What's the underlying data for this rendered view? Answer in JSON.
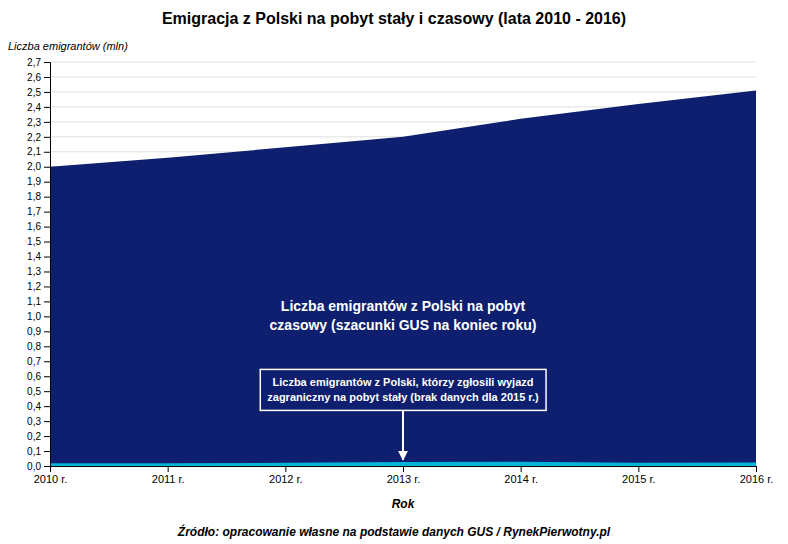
{
  "chart_data": {
    "type": "area",
    "title": "Emigracja z Polski na pobyt stały i czasowy (lata 2010 - 2016)",
    "xlabel": "Rok",
    "ylabel": "Liczba emigrantów (mln)",
    "source": "Źródło: opracowanie własne na podstawie danych GUS / RynekPierwotny.pl",
    "x": [
      2010,
      2011,
      2012,
      2013,
      2014,
      2015,
      2016
    ],
    "series": [
      {
        "color": "#0d1f6e",
        "values": [
          2.0,
          2.06,
          2.13,
          2.2,
          2.32,
          2.42,
          2.51
        ]
      },
      {
        "color": "#00b4d8",
        "values": [
          0.018,
          0.019,
          0.021,
          0.026,
          0.028,
          0.022,
          0.023
        ]
      }
    ],
    "annotations": [
      "Liczba emigrantów z Polski na pobyt\nczasowy (szacunki GUS na koniec roku)",
      "Liczba emigrantów z Polski, którzy zgłosili wyjazd\nzagraniczny na pobyt stały (brak danych dla 2015 r.)"
    ],
    "xlim": [
      2010,
      2016
    ],
    "xticks": [
      {
        "value": 2010,
        "label": "2010 r."
      },
      {
        "value": 2011,
        "label": "2011 r."
      },
      {
        "value": 2012,
        "label": "2012 r."
      },
      {
        "value": 2013,
        "label": "2013 r."
      },
      {
        "value": 2014,
        "label": "2014 r."
      },
      {
        "value": 2015,
        "label": "2015 r."
      },
      {
        "value": 2016,
        "label": "2016 r."
      }
    ],
    "ylim": [
      0.0,
      2.7
    ],
    "yticks": [
      {
        "value": 0.0,
        "label": "0,0"
      },
      {
        "value": 0.1,
        "label": "0,1"
      },
      {
        "value": 0.2,
        "label": "0,2"
      },
      {
        "value": 0.3,
        "label": "0,3"
      },
      {
        "value": 0.4,
        "label": "0,4"
      },
      {
        "value": 0.5,
        "label": "0,5"
      },
      {
        "value": 0.6,
        "label": "0,6"
      },
      {
        "value": 0.7,
        "label": "0,7"
      },
      {
        "value": 0.8,
        "label": "0,8"
      },
      {
        "value": 0.9,
        "label": "0,9"
      },
      {
        "value": 1.0,
        "label": "1,0"
      },
      {
        "value": 1.1,
        "label": "1,1"
      },
      {
        "value": 1.2,
        "label": "1,2"
      },
      {
        "value": 1.3,
        "label": "1,3"
      },
      {
        "value": 1.4,
        "label": "1,4"
      },
      {
        "value": 1.5,
        "label": "1,5"
      },
      {
        "value": 1.6,
        "label": "1,6"
      },
      {
        "value": 1.7,
        "label": "1,7"
      },
      {
        "value": 1.8,
        "label": "1,8"
      },
      {
        "value": 1.9,
        "label": "1,9"
      },
      {
        "value": 2.0,
        "label": "2,0"
      },
      {
        "value": 2.1,
        "label": "2,1"
      },
      {
        "value": 2.2,
        "label": "2,2"
      },
      {
        "value": 2.3,
        "label": "2,3"
      },
      {
        "value": 2.4,
        "label": "2,4"
      },
      {
        "value": 2.5,
        "label": "2,5"
      },
      {
        "value": 2.6,
        "label": "2,6"
      },
      {
        "value": 2.7,
        "label": "2,7"
      }
    ],
    "grid": true
  }
}
